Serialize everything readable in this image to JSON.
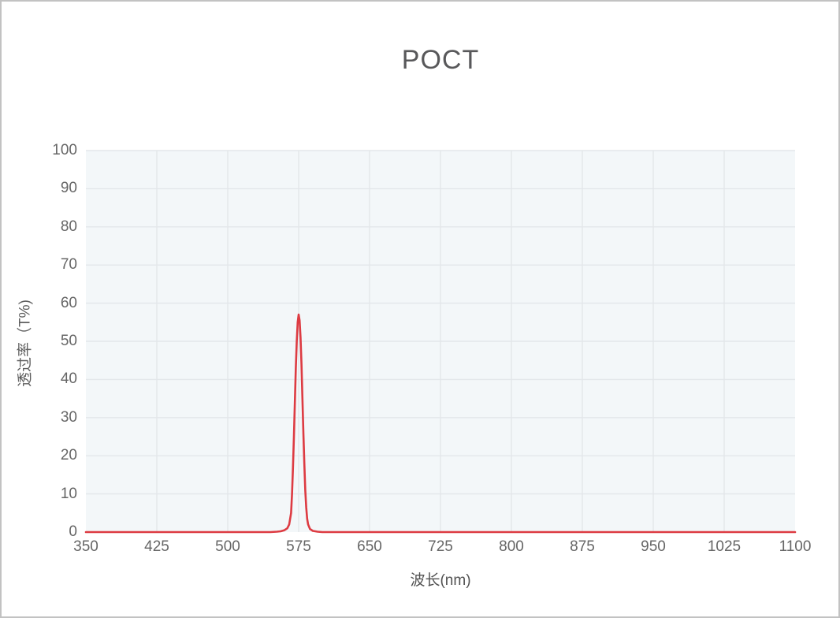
{
  "chart_data": {
    "type": "line",
    "title": "POCT",
    "xlabel": "波长(nm)",
    "ylabel": "透过率（T%)",
    "xlim": [
      350,
      1100
    ],
    "ylim": [
      0,
      100
    ],
    "xticks": [
      350,
      425,
      500,
      575,
      650,
      725,
      800,
      875,
      950,
      1025,
      1100
    ],
    "yticks": [
      0,
      10,
      20,
      30,
      40,
      50,
      60,
      70,
      80,
      90,
      100
    ],
    "grid": true,
    "legend": false,
    "colors": {
      "line": "#dd3b42",
      "plot_bg": "#f3f7f9",
      "grid_line": "#e3e7ea",
      "tick_text": "#666666",
      "title_text": "#58585a",
      "canvas_border": "#c2c2c2"
    },
    "series": [
      {
        "name": "透过率",
        "color": "#dd3b42",
        "points": [
          [
            350,
            0
          ],
          [
            400,
            0
          ],
          [
            450,
            0
          ],
          [
            500,
            0
          ],
          [
            530,
            0
          ],
          [
            545,
            0
          ],
          [
            552,
            0.1
          ],
          [
            556,
            0.2
          ],
          [
            560,
            0.5
          ],
          [
            563,
            1
          ],
          [
            565,
            2
          ],
          [
            567,
            5
          ],
          [
            568,
            10
          ],
          [
            569,
            17
          ],
          [
            570,
            25
          ],
          [
            571,
            34
          ],
          [
            572,
            43
          ],
          [
            573,
            50
          ],
          [
            574,
            55
          ],
          [
            575,
            57
          ],
          [
            576,
            55.5
          ],
          [
            577,
            51
          ],
          [
            578,
            44
          ],
          [
            579,
            35
          ],
          [
            580,
            26
          ],
          [
            581,
            18
          ],
          [
            582,
            11
          ],
          [
            583,
            6.5
          ],
          [
            584,
            3.5
          ],
          [
            585,
            2
          ],
          [
            587,
            0.8
          ],
          [
            590,
            0.3
          ],
          [
            595,
            0.1
          ],
          [
            600,
            0
          ],
          [
            650,
            0
          ],
          [
            700,
            0
          ],
          [
            750,
            0
          ],
          [
            800,
            0
          ],
          [
            850,
            0
          ],
          [
            900,
            0
          ],
          [
            950,
            0
          ],
          [
            1000,
            0
          ],
          [
            1050,
            0
          ],
          [
            1100,
            0
          ]
        ]
      }
    ]
  }
}
